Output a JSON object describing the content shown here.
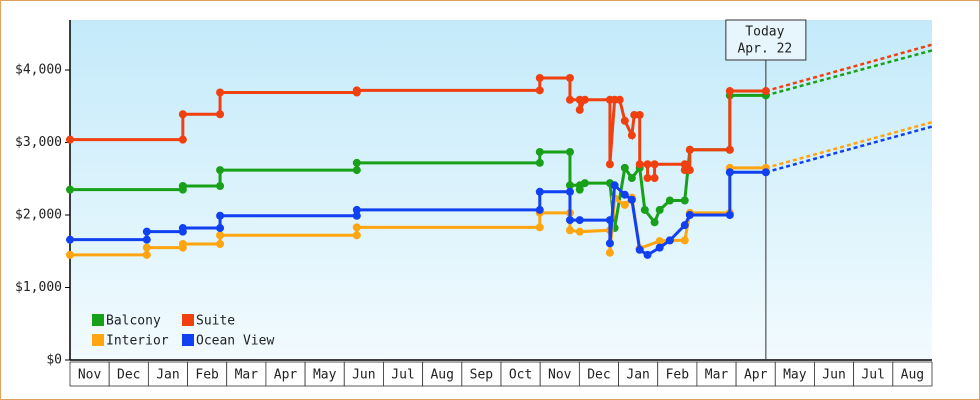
{
  "chart_data": {
    "type": "line",
    "xlim": [
      0,
      22
    ],
    "xticks": [
      {
        "value": 0.5,
        "label": "Nov"
      },
      {
        "value": 1.5,
        "label": "Dec"
      },
      {
        "value": 2.5,
        "label": "Jan"
      },
      {
        "value": 3.5,
        "label": "Feb"
      },
      {
        "value": 4.5,
        "label": "Mar"
      },
      {
        "value": 5.5,
        "label": "Apr"
      },
      {
        "value": 6.5,
        "label": "May"
      },
      {
        "value": 7.5,
        "label": "Jun"
      },
      {
        "value": 8.5,
        "label": "Jul"
      },
      {
        "value": 9.5,
        "label": "Aug"
      },
      {
        "value": 10.5,
        "label": "Sep"
      },
      {
        "value": 11.5,
        "label": "Oct"
      },
      {
        "value": 12.5,
        "label": "Nov"
      },
      {
        "value": 13.5,
        "label": "Dec"
      },
      {
        "value": 14.5,
        "label": "Jan"
      },
      {
        "value": 15.5,
        "label": "Feb"
      },
      {
        "value": 16.5,
        "label": "Mar"
      },
      {
        "value": 17.5,
        "label": "Apr"
      },
      {
        "value": 18.5,
        "label": "May"
      },
      {
        "value": 19.5,
        "label": "Jun"
      },
      {
        "value": 20.5,
        "label": "Jul"
      },
      {
        "value": 21.5,
        "label": "Aug"
      }
    ],
    "ylim": [
      0,
      4690
    ],
    "yticks": [
      {
        "value": 0,
        "label": "$0"
      },
      {
        "value": 1000,
        "label": "$1,000"
      },
      {
        "value": 2000,
        "label": "$2,000"
      },
      {
        "value": 3000,
        "label": "$3,000"
      },
      {
        "value": 4000,
        "label": "$4,000"
      }
    ],
    "today": {
      "x": 17.76,
      "label": "Today",
      "date": "Apr. 22"
    },
    "projection_x": [
      17.76,
      22
    ],
    "series": [
      {
        "name": "Balcony",
        "color": "#18a018",
        "x": [
          0,
          2.88,
          2.88,
          3.83,
          3.83,
          7.32,
          7.32,
          11.99,
          11.99,
          12.76,
          12.76,
          13.01,
          13.01,
          13.14,
          13.78,
          13.9,
          14.16,
          14.34,
          14.54,
          14.67,
          14.92,
          15.05,
          15.31,
          15.69,
          15.82,
          16.84,
          16.84,
          17.76
        ],
        "values": [
          2350,
          2350,
          2400,
          2400,
          2620,
          2620,
          2720,
          2720,
          2870,
          2870,
          2410,
          2410,
          2350,
          2440,
          2440,
          1820,
          2650,
          2510,
          2650,
          2070,
          1900,
          2070,
          2200,
          2200,
          2900,
          2900,
          3650,
          3650
        ],
        "projection": [
          3650,
          4270
        ]
      },
      {
        "name": "Suite",
        "color": "#f04010",
        "x": [
          0,
          2.88,
          2.88,
          3.83,
          3.83,
          7.32,
          7.32,
          11.99,
          11.99,
          12.76,
          12.76,
          13.01,
          13.01,
          13.14,
          13.78,
          13.78,
          13.9,
          14.03,
          14.16,
          14.34,
          14.4,
          14.54,
          14.54,
          14.74,
          14.74,
          14.92,
          14.92,
          15.69,
          15.69,
          15.82,
          15.82,
          16.84,
          16.84,
          17.76
        ],
        "values": [
          3040,
          3040,
          3390,
          3390,
          3690,
          3690,
          3720,
          3720,
          3890,
          3890,
          3590,
          3590,
          3450,
          3590,
          3590,
          2700,
          3590,
          3590,
          3300,
          3100,
          3380,
          3380,
          2700,
          2700,
          2510,
          2510,
          2700,
          2700,
          2620,
          2620,
          2900,
          2900,
          3710,
          3710
        ],
        "projection": [
          3710,
          4350
        ]
      },
      {
        "name": "Interior",
        "color": "#ffa510",
        "x": [
          0,
          1.96,
          1.96,
          2.88,
          2.88,
          3.83,
          3.83,
          7.32,
          7.32,
          11.99,
          11.99,
          12.76,
          12.76,
          13.01,
          13.78,
          13.78,
          13.9,
          14.16,
          14.34,
          14.54,
          15.05,
          15.31,
          15.69,
          15.82,
          16.84,
          16.84,
          17.76
        ],
        "values": [
          1450,
          1450,
          1550,
          1550,
          1600,
          1600,
          1720,
          1720,
          1830,
          1830,
          2030,
          2030,
          1790,
          1770,
          1790,
          1480,
          2230,
          2140,
          2240,
          1540,
          1640,
          1650,
          1650,
          2030,
          2030,
          2650,
          2650
        ],
        "projection": [
          2650,
          3280
        ]
      },
      {
        "name": "Ocean View",
        "color": "#1040f0",
        "x": [
          0,
          1.96,
          1.96,
          2.88,
          2.88,
          3.83,
          3.83,
          7.32,
          7.32,
          11.99,
          11.99,
          12.76,
          12.76,
          13.01,
          13.78,
          13.78,
          13.9,
          14.16,
          14.34,
          14.54,
          14.74,
          15.05,
          15.31,
          15.69,
          15.82,
          16.84,
          16.84,
          17.76
        ],
        "values": [
          1660,
          1660,
          1770,
          1770,
          1820,
          1820,
          1990,
          1990,
          2070,
          2070,
          2320,
          2320,
          1930,
          1930,
          1930,
          1610,
          2410,
          2280,
          2210,
          1520,
          1450,
          1550,
          1650,
          1860,
          2000,
          2000,
          2590,
          2590
        ],
        "projection": [
          2590,
          3220
        ]
      }
    ]
  }
}
